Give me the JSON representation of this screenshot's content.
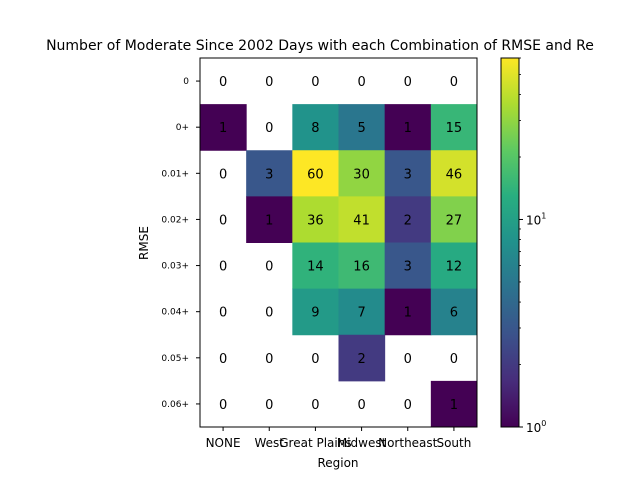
{
  "chart_data": {
    "type": "heatmap",
    "title": "Number of Moderate Since 2002 Days with each Combination of RMSE and Re",
    "xlabel": "Region",
    "ylabel": "RMSE",
    "x_categories": [
      "NONE",
      "West",
      "Great Plains",
      "Midwest",
      "Northeast",
      "South"
    ],
    "y_categories": [
      "0",
      "0+",
      "0.01+",
      "0.02+",
      "0.03+",
      "0.04+",
      "0.05+",
      "0.06+"
    ],
    "values": [
      [
        0,
        0,
        0,
        0,
        0,
        0
      ],
      [
        1,
        0,
        8,
        5,
        1,
        15
      ],
      [
        0,
        3,
        60,
        30,
        3,
        46
      ],
      [
        0,
        1,
        36,
        41,
        2,
        27
      ],
      [
        0,
        0,
        14,
        16,
        3,
        12
      ],
      [
        0,
        0,
        9,
        7,
        1,
        6
      ],
      [
        0,
        0,
        0,
        2,
        0,
        0
      ],
      [
        0,
        0,
        0,
        0,
        0,
        1
      ]
    ],
    "zero_cells_blank": true,
    "color_scale": "log",
    "colormap": "viridis",
    "colorbar": {
      "range": [
        1,
        60
      ],
      "major_ticks": [
        {
          "value": 1,
          "label": "10",
          "exp": "0"
        },
        {
          "value": 10,
          "label": "10",
          "exp": "1"
        }
      ],
      "minor_ticks": [
        2,
        3,
        4,
        5,
        6,
        7,
        8,
        9,
        20,
        30,
        40,
        50,
        60
      ]
    }
  }
}
